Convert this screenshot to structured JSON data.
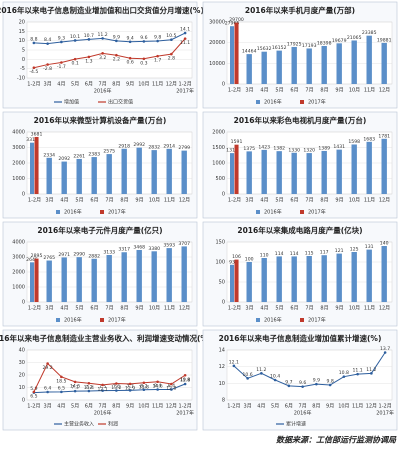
{
  "chart_data": [
    {
      "type": "line",
      "title": "2016年以来电子信息制造业增加值和出口交货值分月增速(%)",
      "categories": [
        "1-2月",
        "3月",
        "4月",
        "5月",
        "6月",
        "7月",
        "8月",
        "9月",
        "10月",
        "11月",
        "12月",
        "1-2月"
      ],
      "x_groups": [
        "2016年",
        "2017年"
      ],
      "series": [
        {
          "name": "增加值",
          "color": "#2e5f9e",
          "values": [
            8.8,
            8.4,
            9.3,
            10.1,
            10.7,
            11.2,
            9.9,
            9.4,
            9.6,
            9.8,
            10.5,
            14.1
          ]
        },
        {
          "name": "出口交货值",
          "color": "#c0392b",
          "values": [
            -4.5,
            -2.8,
            -1.7,
            0.1,
            1.3,
            3.2,
            2.2,
            0.6,
            0.3,
            1.7,
            2.8,
            11.1
          ]
        }
      ],
      "ylim": [
        -10,
        20
      ],
      "yticks": [
        -10,
        -5,
        0,
        5,
        10,
        15,
        20
      ],
      "grid": true
    },
    {
      "type": "bar",
      "title": "2016年以来手机月度产量(万部)",
      "categories": [
        "1-2月",
        "3月",
        "4月",
        "5月",
        "6月",
        "7月",
        "8月",
        "9月",
        "10月",
        "11月",
        "12月"
      ],
      "series": [
        {
          "name": "2016年",
          "color": "#5b8fc9",
          "values": [
            27965,
            14464,
            15632,
            16152,
            17925,
            17193,
            18398,
            19679,
            21065,
            23385,
            19881
          ]
        },
        {
          "name": "2017年",
          "color": "#c0392b",
          "values": [
            29700,
            null,
            null,
            null,
            null,
            null,
            null,
            null,
            null,
            null,
            null
          ]
        }
      ],
      "ylim": [
        0,
        30000
      ],
      "yticks": [
        0,
        10000,
        20000,
        30000
      ],
      "grid": true
    },
    {
      "type": "bar",
      "title": "2016年以来微型计算机设备产量(万台)",
      "categories": [
        "1-2月",
        "3月",
        "4月",
        "5月",
        "6月",
        "7月",
        "8月",
        "9月",
        "10月",
        "11月",
        "12月"
      ],
      "series": [
        {
          "name": "2016年",
          "color": "#5b8fc9",
          "values": [
            3311,
            2334,
            2092,
            2261,
            2383,
            2575,
            2918,
            2992,
            2832,
            2914,
            2799
          ]
        },
        {
          "name": "2017年",
          "color": "#c0392b",
          "values": [
            3681,
            null,
            null,
            null,
            null,
            null,
            null,
            null,
            null,
            null,
            null
          ]
        }
      ],
      "ylim": [
        0,
        4000
      ],
      "yticks": [
        0,
        1000,
        2000,
        3000,
        4000
      ],
      "grid": true
    },
    {
      "type": "bar",
      "title": "2016年以来彩色电视机月度产量(万台)",
      "categories": [
        "1-2月",
        "3月",
        "4月",
        "5月",
        "6月",
        "7月",
        "8月",
        "9月",
        "10月",
        "11月",
        "12月"
      ],
      "series": [
        {
          "name": "2016年",
          "color": "#5b8fc9",
          "values": [
            1319,
            1375,
            1423,
            1382,
            1330,
            1320,
            1389,
            1431,
            1598,
            1683,
            1781
          ]
        },
        {
          "name": "2017年",
          "color": "#c0392b",
          "values": [
            1591,
            null,
            null,
            null,
            null,
            null,
            null,
            null,
            null,
            null,
            null
          ]
        }
      ],
      "ylim": [
        0,
        2000
      ],
      "yticks": [
        0,
        500,
        1000,
        1500,
        2000
      ],
      "grid": true
    },
    {
      "type": "bar",
      "title": "2016年以来电子元件月度产量(亿只)",
      "categories": [
        "1-2月",
        "3月",
        "4月",
        "5月",
        "6月",
        "7月",
        "8月",
        "9月",
        "10月",
        "11月",
        "12月"
      ],
      "series": [
        {
          "name": "2016年",
          "color": "#5b8fc9",
          "values": [
            2645,
            2765,
            2971,
            2990,
            2882,
            3133,
            3317,
            3468,
            3380,
            3593,
            3707
          ]
        },
        {
          "name": "2017年",
          "color": "#c0392b",
          "values": [
            2895,
            null,
            null,
            null,
            null,
            null,
            null,
            null,
            null,
            null,
            null
          ]
        }
      ],
      "ylim": [
        0,
        4000
      ],
      "yticks": [
        0,
        1000,
        2000,
        3000,
        4000
      ],
      "grid": true
    },
    {
      "type": "bar",
      "title": "2016年以来集成电路月度产量(亿块)",
      "categories": [
        "1-2月",
        "3月",
        "4月",
        "5月",
        "6月",
        "7月",
        "8月",
        "9月",
        "10月",
        "11月",
        "12月"
      ],
      "series": [
        {
          "name": "2016年",
          "color": "#5b8fc9",
          "values": [
            93,
            100,
            110,
            114,
            114,
            115,
            117,
            121,
            125,
            131,
            140
          ]
        },
        {
          "name": "2017年",
          "color": "#c0392b",
          "values": [
            106,
            null,
            null,
            null,
            null,
            null,
            null,
            null,
            null,
            null,
            null
          ]
        }
      ],
      "ylim": [
        0,
        150
      ],
      "yticks": [
        0,
        50,
        100,
        150
      ],
      "grid": true
    },
    {
      "type": "line",
      "title": "2016年以来电子信息制造业主营业务收入、利润增速变动情况(%)",
      "categories": [
        "1-2月",
        "3月",
        "4月",
        "5月",
        "6月",
        "7月",
        "8月",
        "9月",
        "10月",
        "11月",
        "12月",
        "1-2月"
      ],
      "x_groups": [
        "2016年",
        "2017年"
      ],
      "series": [
        {
          "name": "主营业务收入",
          "color": "#2e5f9e",
          "values": [
            5.9,
            6.4,
            6.5,
            7.1,
            7.2,
            7.5,
            7.6,
            7.7,
            8.2,
            8.4,
            8.4,
            12.8
          ]
        },
        {
          "name": "利润",
          "color": "#c0392b",
          "values": [
            6.5,
            29.2,
            18.5,
            14.5,
            13.4,
            12.1,
            13.2,
            12.9,
            13.8,
            14.6,
            12.8,
            19.8
          ]
        }
      ],
      "ylim": [
        0,
        40
      ],
      "yticks": [
        0,
        10,
        20,
        30,
        40
      ],
      "grid": true
    },
    {
      "type": "line",
      "title": "2016年以来电子信息制造业增加值累计增速(%)",
      "categories": [
        "1-2月",
        "3月",
        "4月",
        "5月",
        "6月",
        "7月",
        "8月",
        "9月",
        "10月",
        "11月",
        "12月",
        "1-2月"
      ],
      "x_groups": [
        "2016年",
        "2017年"
      ],
      "series": [
        {
          "name": "累计增速",
          "color": "#2e5f9e",
          "values": [
            12.1,
            10.6,
            11.2,
            10.4,
            9.7,
            9.6,
            9.9,
            9.8,
            10.8,
            11.1,
            11.2,
            13.7
          ]
        }
      ],
      "ylim": [
        8,
        14
      ],
      "yticks": [
        8,
        10,
        12,
        14
      ],
      "grid": true
    }
  ],
  "source": "数据来源：工信部运行监测协调局"
}
